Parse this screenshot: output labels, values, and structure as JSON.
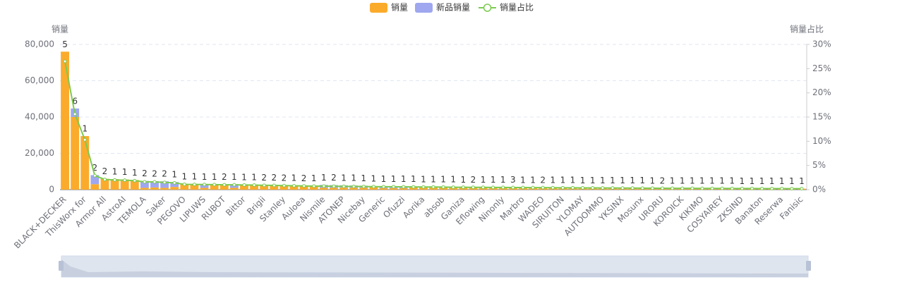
{
  "chart_data": {
    "type": "bar",
    "categories": [
      "BLACK+DECKER",
      null,
      "ThisWorx for",
      null,
      "Armor All",
      null,
      "AstroAI",
      null,
      "TEMOLA",
      null,
      "Saker",
      null,
      "PEGOVO",
      null,
      "LIPUWS",
      null,
      "RUBOT",
      null,
      "Bittor",
      null,
      "Brigii",
      null,
      "Stanley",
      null,
      "Auloea",
      null,
      "Nismile",
      null,
      "ATONEP",
      null,
      "Nicebay",
      null,
      "Generic",
      null,
      "Ofuzzi",
      null,
      "Aorika",
      null,
      "absob",
      null,
      "Ganiza",
      null,
      "Eflowing",
      null,
      "Ninonly",
      null,
      "Marbro",
      null,
      "WADEO",
      null,
      "SIRUITON",
      null,
      "YLOMAY",
      null,
      "AUTOOMMO",
      null,
      "YKSINX",
      null,
      "Mosunx",
      null,
      "URORU",
      null,
      "KOROICK",
      null,
      "KIKIMO",
      null,
      "COSYAIREY",
      null,
      "ZKSIND",
      null,
      "Banaton",
      null,
      "Reserwa",
      null,
      "Fanisic"
    ],
    "series": [
      {
        "name": "销量",
        "color": "#fbab2b",
        "values": [
          76000,
          40000,
          29500,
          3000,
          6000,
          5800,
          5600,
          5300,
          1000,
          1200,
          1000,
          1500,
          3200,
          3100,
          1000,
          3000,
          2900,
          1000,
          2800,
          2700,
          2600,
          2500,
          2400,
          2300,
          2200,
          2100,
          1000,
          1000,
          1100,
          1000,
          1000,
          1900,
          800,
          800,
          800,
          1700,
          1600,
          1600,
          1500,
          1500,
          1450,
          1400,
          1400,
          1350,
          1300,
          1300,
          1250,
          1200,
          1200,
          1150,
          1100,
          1100,
          1050,
          1000,
          1000,
          950,
          900,
          900,
          880,
          850,
          820,
          800,
          780,
          760,
          740,
          720,
          700,
          680,
          660,
          640,
          620,
          600,
          580,
          560,
          540
        ]
      },
      {
        "name": "新品销量",
        "color": "#9ea7ef",
        "values": [
          0,
          4700,
          0,
          5000,
          0,
          0,
          0,
          0,
          3800,
          3500,
          3600,
          2700,
          0,
          0,
          2000,
          0,
          0,
          2000,
          0,
          0,
          0,
          0,
          0,
          0,
          0,
          0,
          1600,
          1500,
          1300,
          1300,
          1200,
          0,
          1000,
          1000,
          900,
          0,
          0,
          0,
          0,
          0,
          0,
          0,
          0,
          0,
          0,
          0,
          0,
          0,
          0,
          0,
          0,
          0,
          0,
          0,
          0,
          0,
          0,
          0,
          0,
          0,
          0,
          0,
          0,
          0,
          0,
          0,
          0,
          0,
          0,
          0,
          0,
          0,
          0,
          0,
          0
        ]
      },
      {
        "name": "销量占比",
        "color": "#7ccb4f",
        "axis": "y2",
        "values": [
          26.5,
          15.6,
          10.3,
          2.9,
          2.1,
          2.0,
          1.95,
          1.85,
          1.6,
          1.6,
          1.5,
          1.4,
          1.1,
          1.08,
          1.05,
          1.04,
          1.01,
          1.0,
          0.97,
          0.94,
          0.9,
          0.87,
          0.84,
          0.8,
          0.77,
          0.73,
          0.72,
          0.7,
          0.68,
          0.66,
          0.64,
          0.62,
          0.6,
          0.6,
          0.58,
          0.56,
          0.55,
          0.54,
          0.52,
          0.5,
          0.5,
          0.48,
          0.47,
          0.46,
          0.45,
          0.44,
          0.43,
          0.42,
          0.41,
          0.4,
          0.39,
          0.38,
          0.37,
          0.36,
          0.35,
          0.34,
          0.33,
          0.32,
          0.31,
          0.3,
          0.29,
          0.28,
          0.27,
          0.27,
          0.26,
          0.25,
          0.25,
          0.24,
          0.23,
          0.23,
          0.22,
          0.22,
          0.21,
          0.2,
          0.2
        ]
      }
    ],
    "bar_labels": [
      5,
      6,
      1,
      2,
      2,
      1,
      1,
      1,
      2,
      2,
      2,
      1,
      1,
      1,
      1,
      1,
      2,
      1,
      1,
      1,
      2,
      2,
      2,
      1,
      2,
      1,
      1,
      2,
      1,
      1,
      1,
      1,
      1,
      1,
      1,
      1,
      1,
      1,
      1,
      1,
      1,
      2,
      1,
      1,
      1,
      3,
      1,
      1,
      2,
      1,
      1,
      1,
      1,
      1,
      1,
      1,
      1,
      1,
      1,
      1,
      2,
      1,
      1,
      1,
      1,
      1,
      1,
      1,
      1,
      1,
      1,
      1,
      1,
      1,
      1
    ],
    "y_label": "销量",
    "y2_label": "销量占比",
    "ylim": [
      0,
      80000
    ],
    "yticks": [
      0,
      {
        "value": 20000,
        "label": "20,000"
      },
      {
        "value": 40000,
        "label": "40,000"
      },
      {
        "value": 60000,
        "label": "60,000"
      },
      {
        "value": 80000,
        "label": "80,000"
      }
    ],
    "y2lim": [
      0,
      30
    ],
    "y2ticks": [
      {
        "value": 0,
        "label": "0%"
      },
      {
        "value": 5,
        "label": "5%"
      },
      {
        "value": 10,
        "label": "10%"
      },
      {
        "value": 15,
        "label": "15%"
      },
      {
        "value": 20,
        "label": "20%"
      },
      {
        "value": 25,
        "label": "25%"
      },
      {
        "value": 30,
        "label": "30%"
      }
    ],
    "grid": true,
    "stacked": true
  }
}
